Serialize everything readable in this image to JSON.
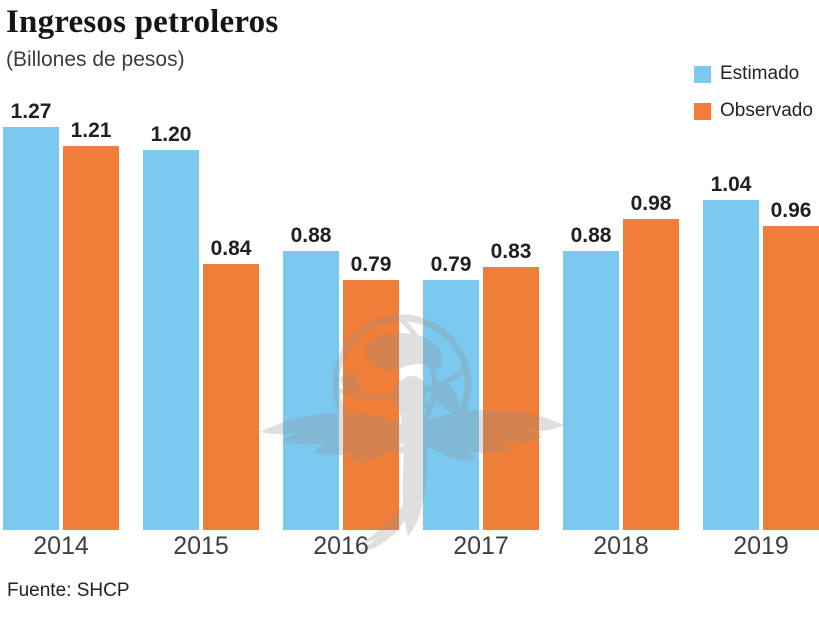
{
  "header": {
    "title": "Ingresos petroleros",
    "subtitle": "(Billones de pesos)"
  },
  "legend": [
    {
      "key": "estimado",
      "label": "Estimado",
      "color": "#7cc9ef"
    },
    {
      "key": "observado",
      "label": "Observado",
      "color": "#ee7e38"
    }
  ],
  "footer": {
    "source": "Fuente: SHCP"
  },
  "watermark": {
    "name": "el-universal-eagle-globe",
    "color": "#8f8f8f"
  },
  "colors": {
    "estimado": "#7cc9ef",
    "observado": "#ee7e38",
    "value_label": "#231f20",
    "axis_label": "#3f4043",
    "title": "#171415"
  },
  "chart_data": {
    "type": "bar",
    "title": "Ingresos petroleros",
    "subtitle": "(Billones de pesos)",
    "source": "Fuente: SHCP",
    "categories": [
      "2014",
      "2015",
      "2016",
      "2017",
      "2018",
      "2019"
    ],
    "series": [
      {
        "name": "Estimado",
        "color": "#7cc9ef",
        "values": [
          1.27,
          1.2,
          0.88,
          0.79,
          0.88,
          1.04
        ]
      },
      {
        "name": "Observado",
        "color": "#ee7e38",
        "values": [
          1.21,
          0.84,
          0.79,
          0.83,
          0.98,
          0.96
        ]
      }
    ],
    "xlabel": "",
    "ylabel": "Billones de pesos",
    "ylim": [
      0,
      1.35
    ],
    "grid": false,
    "value_labels": true,
    "value_format": "0.00",
    "legend_position": "top-right"
  }
}
